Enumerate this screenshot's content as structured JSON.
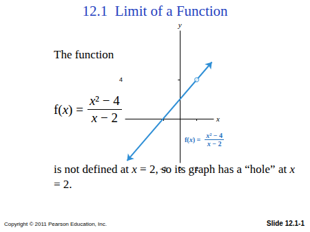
{
  "slide": {
    "title": "12.1  Limit of a Function",
    "intro": "The function",
    "formula": {
      "lhs": "f(x) =",
      "numerator": "x² − 4",
      "denominator": "x − 2"
    },
    "statement": "is not defined at x = 2, so its graph has a “hole” at x = 2.",
    "copyright": "Copyright © 2011 Pearson Education, Inc.",
    "slide_number": "Slide 12.1-1"
  },
  "chart_data": {
    "type": "line",
    "x": [
      -6.3,
      3.8
    ],
    "values": [
      -4.3,
      5.8
    ],
    "color": "#2f8fd6",
    "marker": "arrow",
    "hole": {
      "x": 2,
      "y": 4
    },
    "annotation": {
      "lhs": "f(x) =",
      "numerator": "x² − 4",
      "denominator": "x − 2"
    },
    "xlabel": "x",
    "ylabel": "y",
    "xlim": [
      -6.5,
      4
    ],
    "ylim": [
      -4.5,
      9
    ],
    "xticks": [
      {
        "value": -2,
        "label": "−2"
      },
      0,
      2
    ],
    "yticks": [
      4
    ]
  }
}
